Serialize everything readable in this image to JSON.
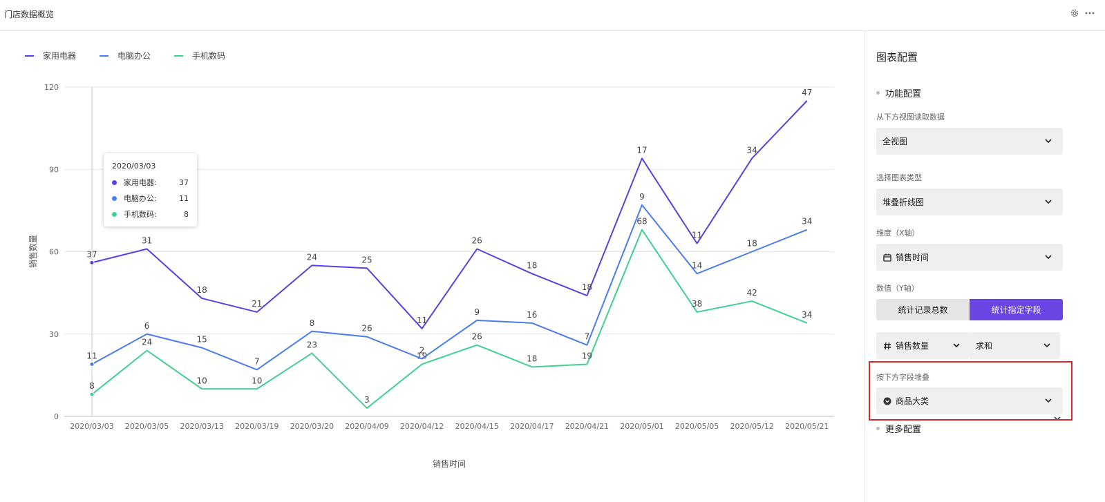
{
  "header": {
    "title": "门店数据概览",
    "settings_icon": "gear-icon",
    "more_icon": "more-horizontal-icon"
  },
  "chart_data": {
    "type": "line",
    "stacked": true,
    "legend_position": "top-left",
    "xlabel": "销售时间",
    "ylabel": "销售数量",
    "ylim": [
      0,
      120
    ],
    "yticks": [
      0,
      30,
      60,
      90,
      120
    ],
    "grid": true,
    "categories": [
      "2020/03/03",
      "2020/03/05",
      "2020/03/13",
      "2020/03/19",
      "2020/03/20",
      "2020/04/09",
      "2020/04/12",
      "2020/04/15",
      "2020/04/17",
      "2020/04/21",
      "2020/05/01",
      "2020/05/05",
      "2020/05/12",
      "2020/05/21"
    ],
    "series": [
      {
        "name": "家用电器",
        "color": "#5b3fe4",
        "values": [
          37,
          31,
          18,
          21,
          24,
          25,
          11,
          26,
          18,
          18,
          17,
          11,
          34,
          47
        ]
      },
      {
        "name": "电脑办公",
        "color": "#4a7bf0",
        "values": [
          11,
          6,
          15,
          7,
          8,
          26,
          2,
          9,
          16,
          7,
          9,
          14,
          18,
          34
        ]
      },
      {
        "name": "手机数码",
        "color": "#3fd08f",
        "values": [
          8,
          24,
          10,
          10,
          23,
          3,
          19,
          26,
          18,
          19,
          68,
          38,
          42,
          34
        ]
      }
    ],
    "tooltip": {
      "title": "2020/03/03",
      "rows": [
        {
          "label": "家用电器:",
          "value": "37",
          "color": "#5b3fe4"
        },
        {
          "label": "电脑办公:",
          "value": "11",
          "color": "#4a7bf0"
        },
        {
          "label": "手机数码:",
          "value": "8",
          "color": "#3fd08f"
        }
      ]
    }
  },
  "panel": {
    "title": "图表配置",
    "function_section": "功能配置",
    "source_label": "从下方视图读取数据",
    "source_value": "全视图",
    "type_label": "选择图表类型",
    "type_value": "堆叠折线图",
    "dimension_label": "维度（X轴）",
    "dimension_value": "销售时间",
    "dimension_icon": "calendar-icon",
    "value_label": "数值（Y轴）",
    "mode_count": "统计记录总数",
    "mode_field": "统计指定字段",
    "field_value": "销售数量",
    "field_icon": "hash-icon",
    "agg_value": "求和",
    "stack_label": "按下方字段堆叠",
    "stack_value": "商品大类",
    "stack_icon": "single-select-icon",
    "more_section": "更多配置",
    "accent_color": "#6b46e5",
    "highlight_color": "#e0262e"
  }
}
